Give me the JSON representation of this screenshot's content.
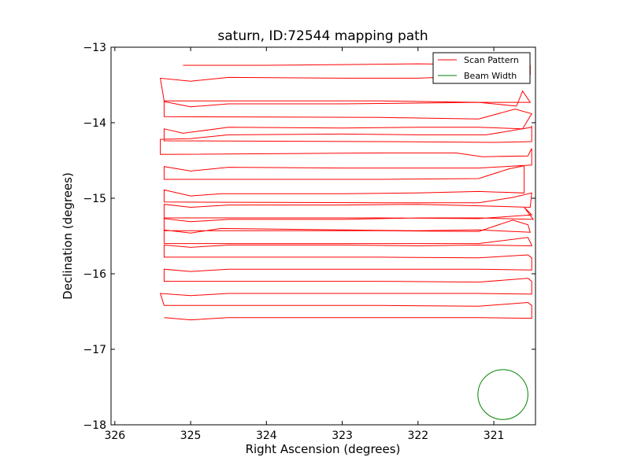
{
  "chart_data": {
    "type": "line",
    "title": "saturn, ID:72544 mapping path",
    "xlabel": "Right Ascension (degrees)",
    "ylabel": "Declination (degrees)",
    "xlim": [
      326.05,
      320.45
    ],
    "ylim": [
      -18.0,
      -13.0
    ],
    "x_ticks": [
      326,
      325,
      324,
      323,
      322,
      321
    ],
    "x_tick_labels": [
      "326",
      "325",
      "324",
      "323",
      "322",
      "321"
    ],
    "y_ticks": [
      -13,
      -14,
      -15,
      -16,
      -17,
      -18
    ],
    "y_tick_labels": [
      "−13",
      "−14",
      "−15",
      "−16",
      "−17",
      "−18"
    ],
    "grid": false,
    "legend_position": "top-right",
    "series": [
      {
        "name": "Scan Pattern",
        "color": "#ff0000",
        "x": [
          325.1,
          324.0,
          323.0,
          322.0,
          321.2,
          320.52,
          320.52,
          321.2,
          322.0,
          323.0,
          324.5,
          325.0,
          325.4,
          325.35,
          322.5,
          321.2,
          320.52,
          320.62,
          320.7,
          321.2,
          322.0,
          323.0,
          324.5,
          325.0,
          325.35,
          325.35,
          322.5,
          321.2,
          320.72,
          320.5,
          320.62,
          321.2,
          322.0,
          323.0,
          324.5,
          325.1,
          325.35,
          325.35,
          322.5,
          321.0,
          320.5,
          320.5,
          320.5,
          321.1,
          322.0,
          323.0,
          324.5,
          325.0,
          325.4,
          325.4,
          322.5,
          321.5,
          321.15,
          320.55,
          320.5,
          320.5,
          321.2,
          322.0,
          323.0,
          324.5,
          325.0,
          325.35,
          325.35,
          322.5,
          321.2,
          320.8,
          320.6,
          320.6,
          321.2,
          322.0,
          323.0,
          324.6,
          325.0,
          325.35,
          325.35,
          322.5,
          321.2,
          320.75,
          320.5,
          320.52,
          321.2,
          322.0,
          323.0,
          324.5,
          325.0,
          325.35,
          325.35,
          322.5,
          321.2,
          320.5,
          320.6,
          320.48,
          321.2,
          322.0,
          323.0,
          324.5,
          325.0,
          325.35,
          325.35,
          322.5,
          321.2,
          320.75,
          320.55,
          320.52,
          321.2,
          322.0,
          323.0,
          324.6,
          325.0,
          325.35,
          325.35,
          322.5,
          321.2,
          320.55,
          320.5,
          320.5,
          321.2,
          322.0,
          323.0,
          324.5,
          325.0,
          325.35,
          325.35,
          322.5,
          321.2,
          320.55,
          320.5,
          320.5,
          321.2,
          322.0,
          323.0,
          324.5,
          325.0,
          325.35,
          325.35,
          322.5,
          321.2,
          320.55,
          320.5,
          320.5,
          321.2,
          322.0,
          323.0,
          324.5,
          325.0,
          325.4,
          325.35,
          322.5,
          321.2,
          320.55,
          320.5,
          320.5,
          321.2,
          322.0,
          323.0,
          324.5,
          325.0,
          325.35
        ],
        "y": [
          -13.24,
          -13.24,
          -13.23,
          -13.22,
          -13.23,
          -13.24,
          -13.36,
          -13.38,
          -13.41,
          -13.41,
          -13.4,
          -13.45,
          -13.41,
          -13.71,
          -13.71,
          -13.73,
          -13.73,
          -13.58,
          -13.78,
          -13.73,
          -13.74,
          -13.75,
          -13.75,
          -13.79,
          -13.72,
          -13.92,
          -13.93,
          -13.95,
          -13.82,
          -13.88,
          -14.08,
          -14.06,
          -14.06,
          -14.07,
          -14.06,
          -14.14,
          -14.08,
          -14.24,
          -14.25,
          -14.26,
          -14.25,
          -14.04,
          -14.06,
          -14.16,
          -14.16,
          -14.15,
          -14.16,
          -14.21,
          -14.22,
          -14.42,
          -14.4,
          -14.4,
          -14.45,
          -14.44,
          -14.34,
          -14.56,
          -14.6,
          -14.6,
          -14.6,
          -14.59,
          -14.64,
          -14.58,
          -14.75,
          -14.75,
          -14.74,
          -14.61,
          -14.57,
          -14.93,
          -14.91,
          -14.93,
          -14.94,
          -14.94,
          -14.97,
          -14.89,
          -15.05,
          -15.06,
          -15.06,
          -14.99,
          -14.93,
          -15.12,
          -15.1,
          -15.08,
          -15.09,
          -15.09,
          -15.12,
          -15.08,
          -15.26,
          -15.26,
          -15.27,
          -15.22,
          -15.12,
          -15.28,
          -15.26,
          -15.26,
          -15.28,
          -15.28,
          -15.31,
          -15.27,
          -15.43,
          -15.43,
          -15.44,
          -15.29,
          -15.35,
          -15.45,
          -15.42,
          -15.43,
          -15.42,
          -15.4,
          -15.46,
          -15.42,
          -15.6,
          -15.6,
          -15.6,
          -15.52,
          -15.62,
          -15.63,
          -15.62,
          -15.63,
          -15.62,
          -15.62,
          -15.65,
          -15.62,
          -15.78,
          -15.78,
          -15.79,
          -15.75,
          -15.79,
          -15.95,
          -15.94,
          -15.94,
          -15.94,
          -15.94,
          -15.97,
          -15.94,
          -16.1,
          -16.1,
          -16.11,
          -16.06,
          -16.1,
          -16.27,
          -16.26,
          -16.26,
          -16.26,
          -16.26,
          -16.29,
          -16.26,
          -16.42,
          -16.42,
          -16.43,
          -16.38,
          -16.42,
          -16.59,
          -16.58,
          -16.58,
          -16.58,
          -16.58,
          -16.61,
          -16.58
        ]
      }
    ],
    "beam": {
      "name": "Beam Width",
      "color": "#008000",
      "center_x": 320.88,
      "center_y": -17.6,
      "radius_deg": 0.33
    },
    "legend": [
      {
        "label": "Scan Pattern",
        "color": "#ff0000"
      },
      {
        "label": "Beam Width",
        "color": "#008000"
      }
    ]
  }
}
